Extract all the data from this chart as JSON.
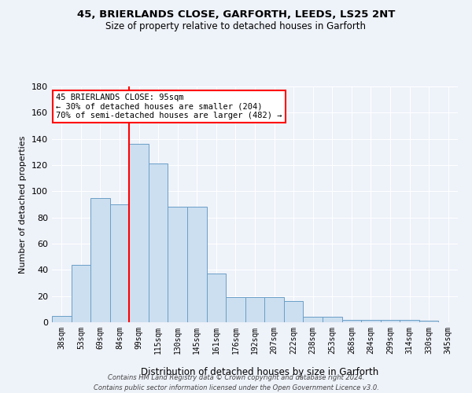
{
  "title_line1": "45, BRIERLANDS CLOSE, GARFORTH, LEEDS, LS25 2NT",
  "title_line2": "Size of property relative to detached houses in Garforth",
  "xlabel": "Distribution of detached houses by size in Garforth",
  "ylabel": "Number of detached properties",
  "categories": [
    "38sqm",
    "53sqm",
    "69sqm",
    "84sqm",
    "99sqm",
    "115sqm",
    "130sqm",
    "145sqm",
    "161sqm",
    "176sqm",
    "192sqm",
    "207sqm",
    "222sqm",
    "238sqm",
    "253sqm",
    "268sqm",
    "284sqm",
    "299sqm",
    "314sqm",
    "330sqm",
    "345sqm"
  ],
  "values": [
    5,
    44,
    95,
    90,
    136,
    121,
    88,
    88,
    37,
    19,
    19,
    19,
    16,
    4,
    4,
    2,
    2,
    2,
    2,
    1,
    0
  ],
  "bar_color": "#ccdff0",
  "bar_edge_color": "#6a9ec7",
  "vline_x": 3.5,
  "vline_color": "red",
  "ylim": [
    0,
    180
  ],
  "yticks": [
    0,
    20,
    40,
    60,
    80,
    100,
    120,
    140,
    160,
    180
  ],
  "annotation_text": "45 BRIERLANDS CLOSE: 95sqm\n← 30% of detached houses are smaller (204)\n70% of semi-detached houses are larger (482) →",
  "annotation_box_color": "white",
  "annotation_box_edge": "red",
  "footer_line1": "Contains HM Land Registry data © Crown copyright and database right 2024.",
  "footer_line2": "Contains public sector information licensed under the Open Government Licence v3.0.",
  "background_color": "#eef2f9",
  "grid_color": "white",
  "fig_width": 6.0,
  "fig_height": 5.0,
  "dpi": 100
}
